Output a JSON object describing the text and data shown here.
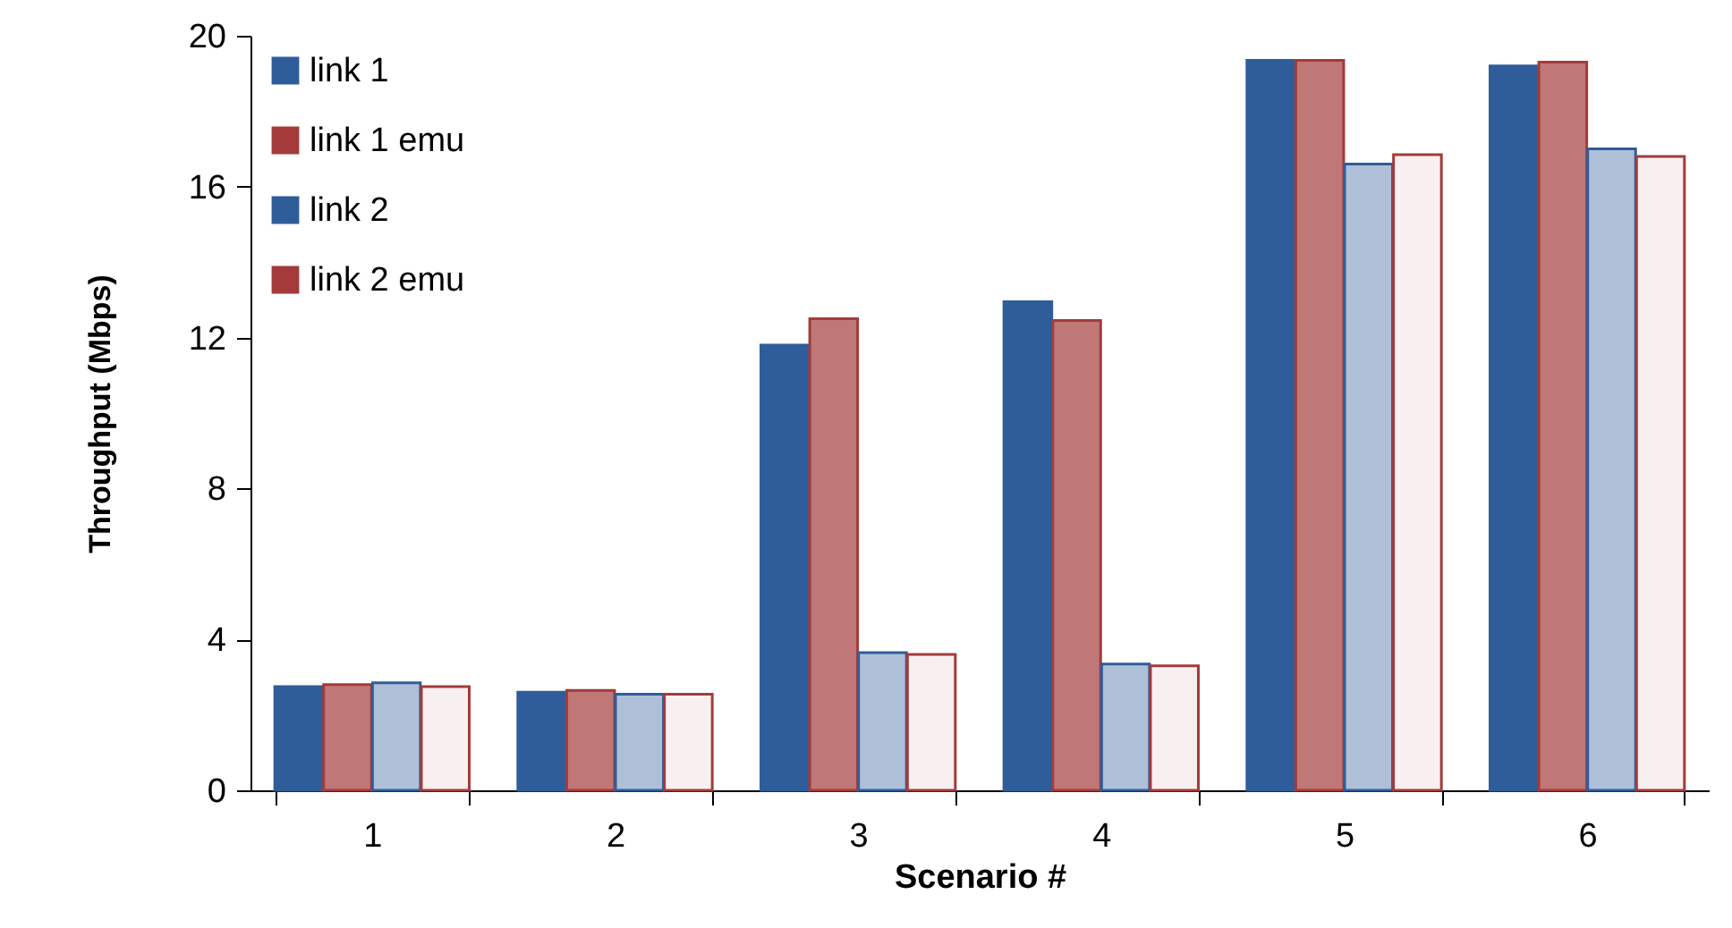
{
  "chart_data": {
    "type": "bar",
    "xlabel": "Scenario #",
    "ylabel": "Throughput  (Mbps)",
    "categories": [
      "1",
      "2",
      "3",
      "4",
      "5",
      "6"
    ],
    "ylim": [
      0,
      20
    ],
    "yticks": [
      0,
      4,
      8,
      12,
      16,
      20
    ],
    "grid": false,
    "legend": "top left",
    "series": [
      {
        "name": "link 1",
        "color": "#2f5d9a",
        "values": [
          2.75,
          2.6,
          11.8,
          12.95,
          19.35,
          19.2
        ]
      },
      {
        "name": "link 1 emu",
        "color": "#a33b3b",
        "values": [
          2.8,
          2.65,
          12.5,
          12.45,
          19.35,
          19.3
        ]
      },
      {
        "name": "link 2",
        "color": "#2f5d9a",
        "values": [
          2.85,
          2.55,
          3.65,
          3.35,
          16.6,
          17.0
        ]
      },
      {
        "name": "link 2 emu",
        "color": "#a33b3b",
        "values": [
          2.75,
          2.55,
          3.6,
          3.3,
          16.85,
          16.8
        ]
      }
    ]
  }
}
